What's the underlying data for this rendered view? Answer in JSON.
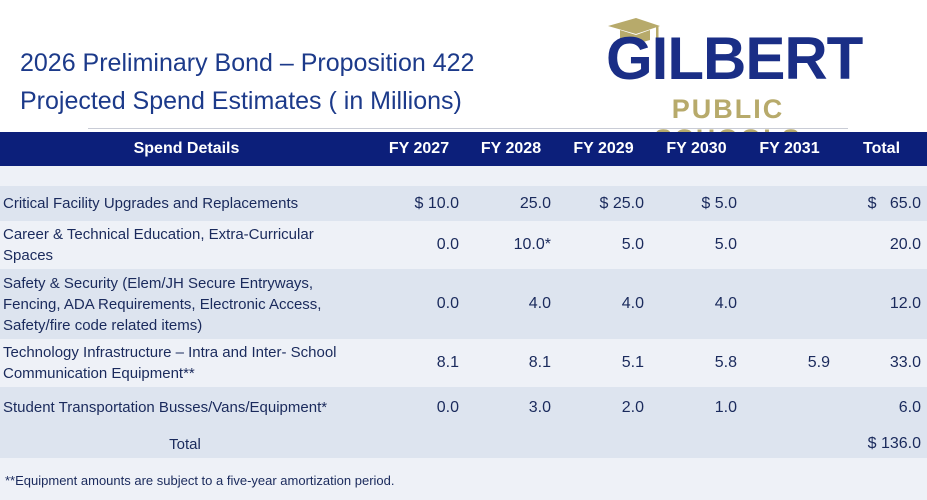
{
  "title": {
    "line1": "2026 Preliminary Bond – Proposition 422",
    "line2": "Projected Spend Estimates ( in Millions)"
  },
  "logo": {
    "name": "GILBERT",
    "subtitle": "PUBLIC SCHOOLS",
    "colors": {
      "navy": "#1a2e86",
      "gold": "#b7aa6b"
    }
  },
  "table": {
    "headers": [
      "Spend Details",
      "FY 2027",
      "FY 2028",
      "FY 2029",
      "FY 2030",
      "FY 2031",
      "Total"
    ],
    "rows": [
      {
        "desc": "Critical Facility Upgrades and Replacements",
        "values": [
          "$ 10.0",
          "25.0",
          "$ 25.0",
          "$ 5.0",
          "",
          "$   65.0"
        ]
      },
      {
        "desc": "Career & Technical Education, Extra-Curricular Spaces",
        "values": [
          "0.0",
          "10.0*",
          "5.0",
          "5.0",
          "",
          "20.0"
        ]
      },
      {
        "desc": "Safety & Security (Elem/JH Secure Entryways, Fencing, ADA Requirements, Electronic Access, Safety/fire code related items)",
        "values": [
          "0.0",
          "4.0",
          "4.0",
          "4.0",
          "",
          "12.0"
        ]
      },
      {
        "desc": "Technology Infrastructure – Intra and Inter- School Communication Equipment**",
        "values": [
          "8.1",
          "8.1",
          "5.1",
          "5.8",
          "5.9",
          "33.0"
        ]
      },
      {
        "desc": "Student Transportation Busses/Vans/Equipment*",
        "values": [
          "0.0",
          "3.0",
          "2.0",
          "1.0",
          "",
          "6.0"
        ]
      }
    ],
    "total": {
      "label": "Total",
      "value": "$ 136.0"
    },
    "header_color": "#0c1f7a"
  },
  "footnote": "**Equipment amounts are subject to a five-year amortization period."
}
